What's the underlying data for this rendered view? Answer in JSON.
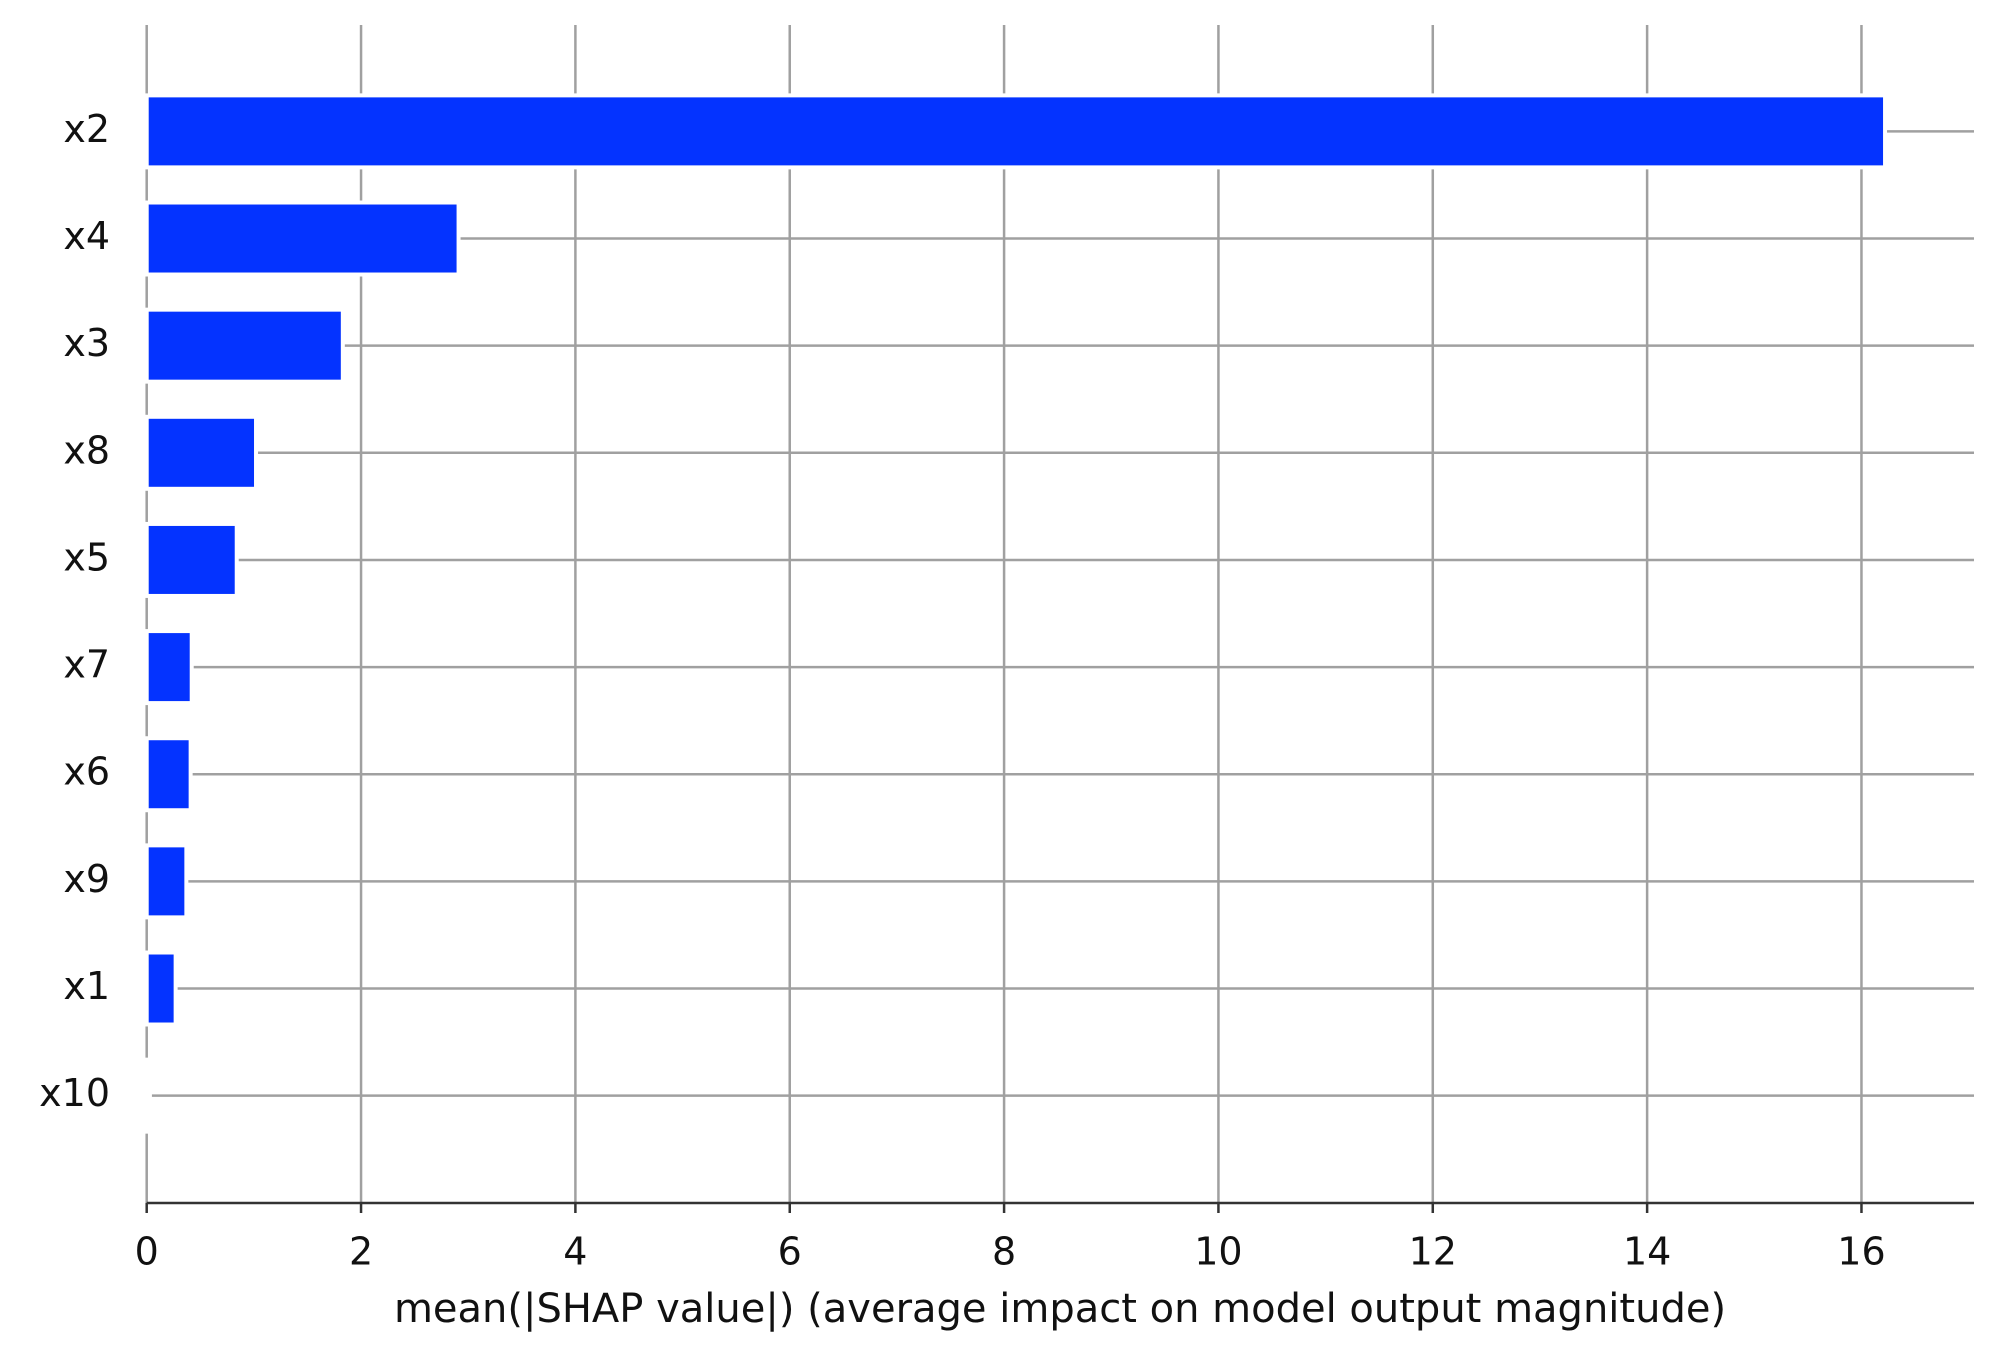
{
  "chart_data": {
    "type": "barh",
    "xlabel": "mean(|SHAP value|) (average impact on model output magnitude)",
    "categories": [
      "x2",
      "x4",
      "x3",
      "x8",
      "x5",
      "x7",
      "x6",
      "x9",
      "x1",
      "x10"
    ],
    "values": [
      16.22,
      2.91,
      1.83,
      1.02,
      0.84,
      0.42,
      0.41,
      0.37,
      0.27,
      0.03
    ],
    "color": "#0433ff",
    "xlim": [
      0,
      17.05
    ],
    "xticks": [
      0,
      2,
      4,
      6,
      8,
      10,
      12,
      14,
      16
    ],
    "grid": true
  }
}
